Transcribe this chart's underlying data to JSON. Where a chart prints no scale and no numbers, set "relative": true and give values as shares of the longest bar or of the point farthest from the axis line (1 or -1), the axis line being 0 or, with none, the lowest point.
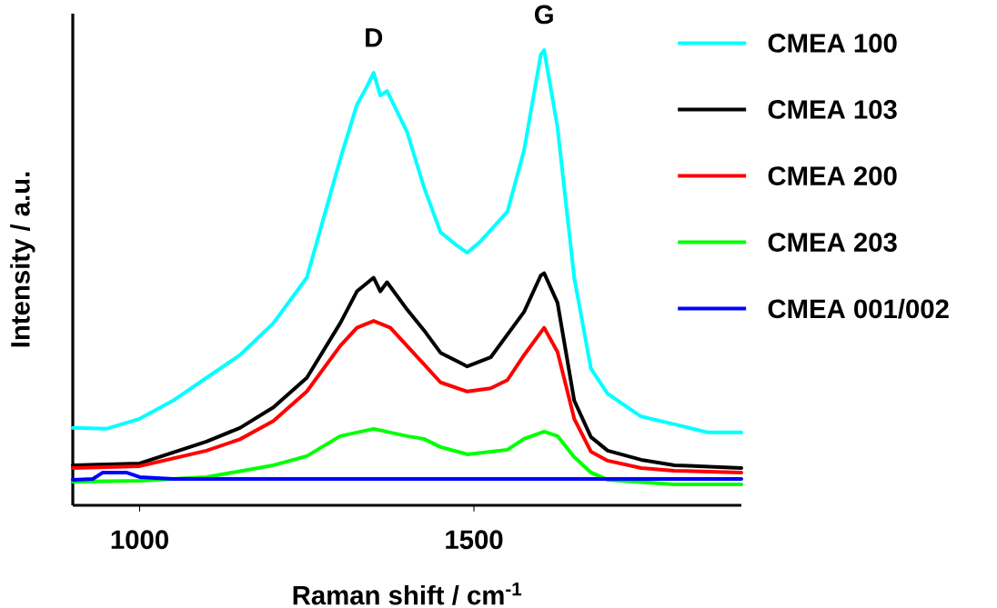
{
  "chart_data": {
    "type": "line",
    "relative": true,
    "xlabel": "Raman shift / cm$^{-1}$",
    "ylabel": "Intensity / a.u.",
    "xlim": [
      900,
      1900
    ],
    "xticks": [
      1000,
      1500
    ],
    "legend": "right",
    "grid": false,
    "marker": "none",
    "line_style": "solid",
    "annotations": [
      {
        "text": "D",
        "x": 1350,
        "y": 0.95
      },
      {
        "text": "G",
        "x": 1605,
        "y": 1.0
      }
    ],
    "series": [
      {
        "name": "CMEA 100",
        "color": "#00ffff",
        "x": [
          900,
          950,
          1000,
          1050,
          1100,
          1150,
          1200,
          1250,
          1275,
          1300,
          1325,
          1340,
          1350,
          1360,
          1370,
          1400,
          1425,
          1450,
          1475,
          1490,
          1510,
          1550,
          1575,
          1600,
          1605,
          1625,
          1650,
          1675,
          1700,
          1750,
          1800,
          1850,
          1900
        ],
        "values": [
          0.17,
          0.168,
          0.19,
          0.23,
          0.28,
          0.33,
          0.4,
          0.5,
          0.63,
          0.76,
          0.88,
          0.92,
          0.95,
          0.9,
          0.91,
          0.82,
          0.7,
          0.6,
          0.57,
          0.555,
          0.58,
          0.645,
          0.78,
          0.99,
          1.0,
          0.83,
          0.5,
          0.3,
          0.245,
          0.195,
          0.178,
          0.16,
          0.16
        ]
      },
      {
        "name": "CMEA 103",
        "color": "#000000",
        "x": [
          900,
          1000,
          1100,
          1150,
          1200,
          1250,
          1300,
          1325,
          1350,
          1360,
          1370,
          1400,
          1425,
          1450,
          1490,
          1525,
          1575,
          1600,
          1605,
          1625,
          1650,
          1675,
          1700,
          1750,
          1800,
          1900
        ],
        "values": [
          0.088,
          0.092,
          0.14,
          0.17,
          0.215,
          0.28,
          0.4,
          0.47,
          0.5,
          0.47,
          0.49,
          0.43,
          0.385,
          0.335,
          0.305,
          0.325,
          0.425,
          0.505,
          0.51,
          0.445,
          0.23,
          0.15,
          0.12,
          0.1,
          0.088,
          0.082
        ]
      },
      {
        "name": "CMEA 200",
        "color": "#ff0000",
        "x": [
          900,
          1000,
          1100,
          1150,
          1200,
          1250,
          1300,
          1325,
          1350,
          1375,
          1400,
          1425,
          1450,
          1490,
          1525,
          1550,
          1575,
          1605,
          1625,
          1650,
          1675,
          1700,
          1750,
          1800,
          1900
        ],
        "values": [
          0.082,
          0.086,
          0.12,
          0.145,
          0.185,
          0.25,
          0.35,
          0.39,
          0.405,
          0.39,
          0.35,
          0.31,
          0.27,
          0.25,
          0.257,
          0.275,
          0.33,
          0.39,
          0.337,
          0.19,
          0.118,
          0.098,
          0.082,
          0.076,
          0.072
        ]
      },
      {
        "name": "CMEA 203",
        "color": "#00ff00",
        "x": [
          900,
          1000,
          1100,
          1200,
          1250,
          1300,
          1350,
          1400,
          1425,
          1450,
          1490,
          1550,
          1575,
          1605,
          1625,
          1650,
          1675,
          1700,
          1800,
          1900
        ],
        "values": [
          0.052,
          0.054,
          0.062,
          0.088,
          0.108,
          0.152,
          0.168,
          0.152,
          0.146,
          0.128,
          0.112,
          0.122,
          0.146,
          0.162,
          0.152,
          0.106,
          0.072,
          0.056,
          0.046,
          0.046
        ]
      },
      {
        "name": "CMEA 001/002",
        "color": "#0000ff",
        "x": [
          900,
          930,
          945,
          980,
          1000,
          1050,
          1200,
          1500,
          1900
        ],
        "values": [
          0.056,
          0.058,
          0.072,
          0.072,
          0.062,
          0.058,
          0.058,
          0.058,
          0.058
        ]
      }
    ]
  }
}
